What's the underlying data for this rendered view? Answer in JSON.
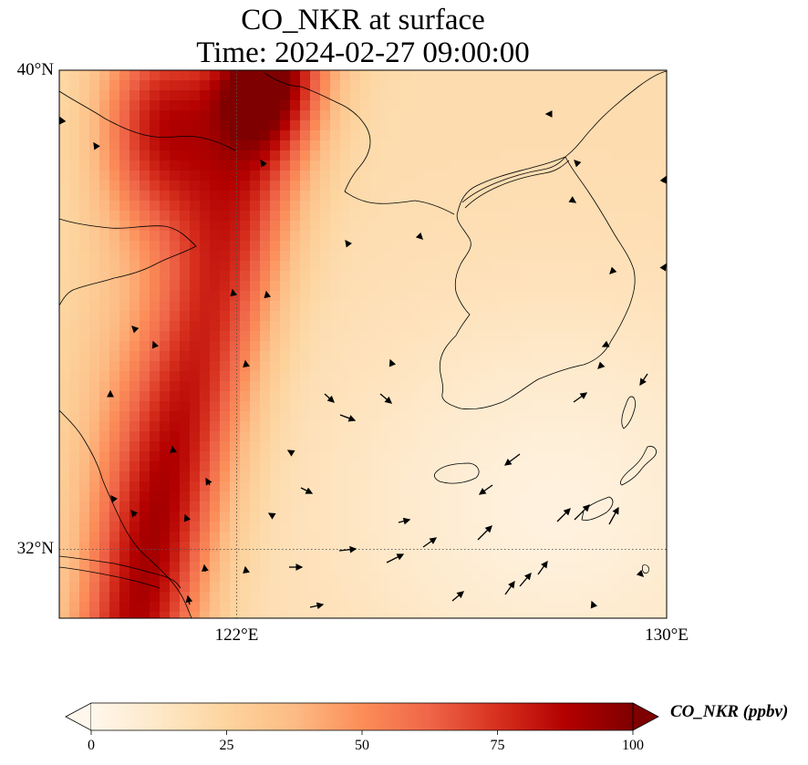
{
  "title": {
    "line1": "CO_NKR at surface",
    "line2": "Time: 2024-02-27 09:00:00"
  },
  "map": {
    "extent": {
      "lon": [
        118.7,
        130.0
      ],
      "lat": [
        30.85,
        40.0
      ]
    },
    "lat_ticks": [
      {
        "value": 40,
        "label": "40°N"
      },
      {
        "value": 32,
        "label": "32°N"
      }
    ],
    "lon_ticks": [
      {
        "value": 122,
        "label": "122°E"
      },
      {
        "value": 130,
        "label": "130°E"
      }
    ],
    "gridlines": "dotted",
    "variable": "CO_NKR",
    "units": "ppbv"
  },
  "colorbar": {
    "label": "CO_NKR (ppbv)",
    "min": 0,
    "max": 100,
    "extend": "both",
    "colormap": "OrRd",
    "stops": [
      "#fff7ec",
      "#fee8c8",
      "#fdd49e",
      "#fdbb84",
      "#fc8d59",
      "#ef6548",
      "#d7301f",
      "#b30000",
      "#7f0000"
    ],
    "ticks": [
      {
        "value": 0,
        "label": "0"
      },
      {
        "value": 25,
        "label": "25"
      },
      {
        "value": 50,
        "label": "50"
      },
      {
        "value": 75,
        "label": "75"
      },
      {
        "value": 100,
        "label": "100"
      }
    ]
  },
  "wind_vectors": "visible"
}
